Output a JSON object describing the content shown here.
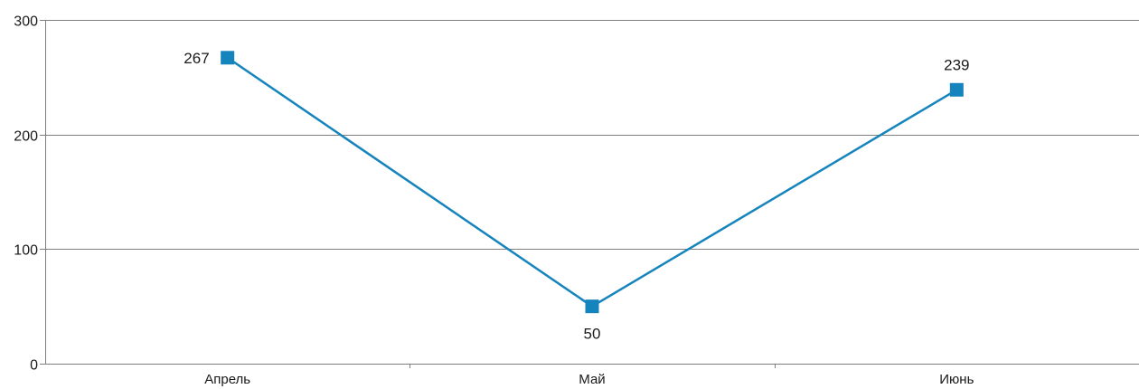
{
  "chart_data": {
    "type": "line",
    "categories": [
      "Апрель",
      "Май",
      "Июнь"
    ],
    "series": [
      {
        "values": [
          267,
          50,
          239
        ]
      }
    ],
    "ylim": [
      0,
      300
    ],
    "yticks": [
      0,
      100,
      200,
      300
    ],
    "ytick_labels": [
      "0",
      "100",
      "200",
      "300"
    ],
    "data_labels": [
      "267",
      "50",
      "239"
    ],
    "data_label_placement": [
      "left",
      "below",
      "above"
    ],
    "grid": true,
    "legend": false,
    "colors": {
      "line": "#1584bd",
      "marker": "#1584bd",
      "grid": "#7f7f7f",
      "axis": "#7f7f7f"
    }
  }
}
